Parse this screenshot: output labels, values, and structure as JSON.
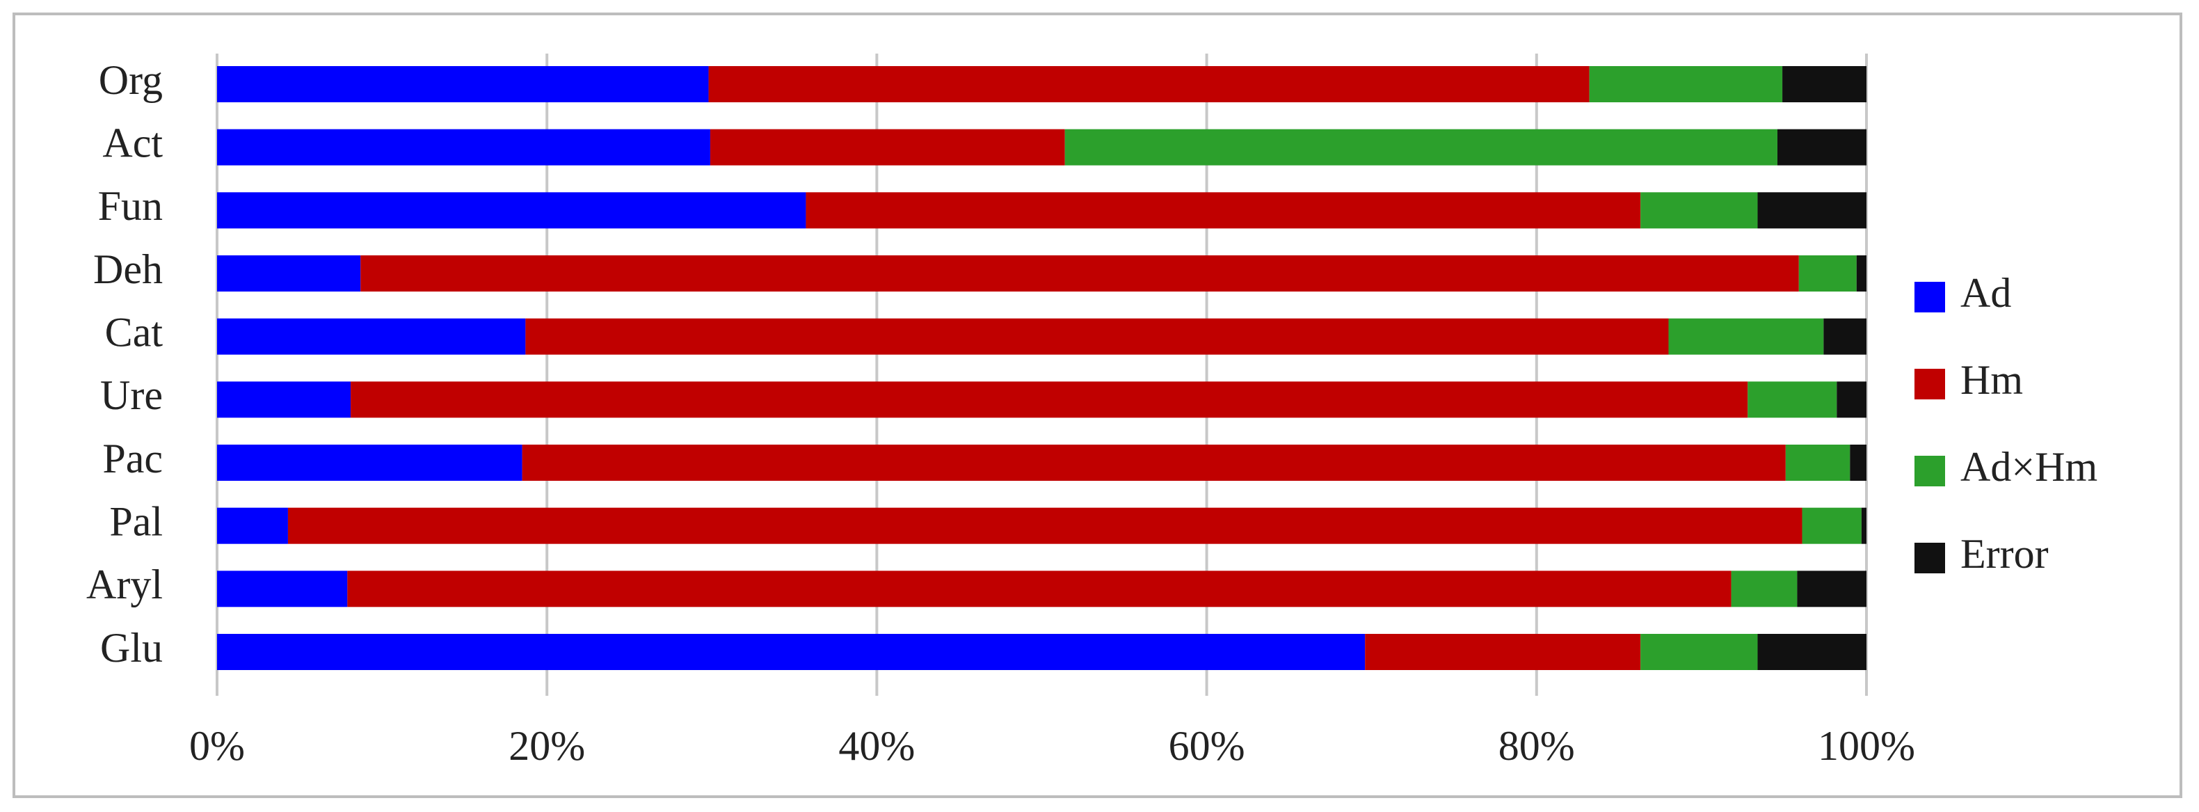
{
  "chart_data": {
    "type": "stacked-bar-horizontal",
    "categories": [
      "Org",
      "Act",
      "Fun",
      "Deh",
      "Cat",
      "Ure",
      "Pac",
      "Pal",
      "Aryl",
      "Glu"
    ],
    "series": [
      {
        "name": "Ad",
        "color": "#0000ff",
        "values": [
          29.8,
          29.9,
          35.7,
          8.7,
          18.7,
          8.1,
          18.5,
          4.3,
          7.9,
          69.6
        ]
      },
      {
        "name": "Hm",
        "color": "#c00000",
        "values": [
          53.4,
          21.5,
          50.6,
          87.2,
          69.3,
          84.7,
          76.6,
          91.8,
          83.9,
          16.7
        ]
      },
      {
        "name": "Ad×Hm",
        "color": "#2ca02c",
        "values": [
          11.7,
          43.2,
          7.1,
          3.5,
          9.4,
          5.4,
          3.9,
          3.6,
          4.0,
          7.1
        ]
      },
      {
        "name": "Error",
        "color": "#111111",
        "values": [
          5.1,
          5.4,
          6.6,
          0.6,
          2.6,
          1.8,
          1.0,
          0.3,
          4.2,
          6.6
        ]
      }
    ],
    "xlim": [
      0,
      100
    ],
    "xticks": [
      {
        "value": 0,
        "label": "0%"
      },
      {
        "value": 20,
        "label": "20%"
      },
      {
        "value": 40,
        "label": "40%"
      },
      {
        "value": 60,
        "label": "60%"
      },
      {
        "value": 80,
        "label": "80%"
      },
      {
        "value": 100,
        "label": "100%"
      }
    ],
    "grid": true,
    "legend": "right"
  }
}
